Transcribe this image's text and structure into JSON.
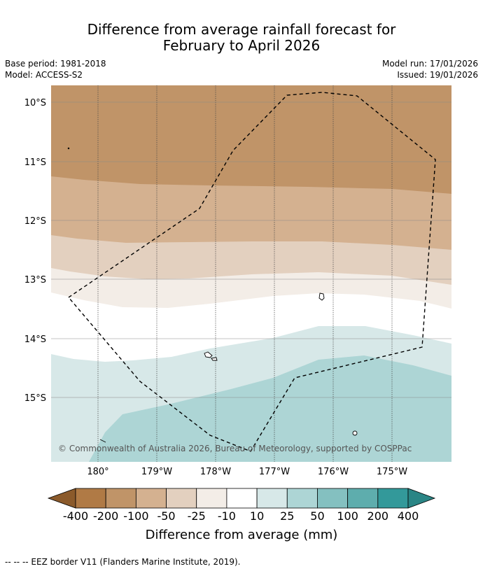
{
  "title_line1": "Difference from average rainfall forecast for",
  "title_line2": "February to April 2026",
  "base_period": "Base period: 1981-2018",
  "model": "Model: ACCESS-S2",
  "model_run": "Model run: 17/01/2026",
  "issued": "Issued: 19/01/2026",
  "lat_labels": [
    "10°S",
    "11°S",
    "12°S",
    "13°S",
    "14°S",
    "15°S"
  ],
  "lon_labels": [
    "180°",
    "179°W",
    "178°W",
    "177°W",
    "176°W",
    "175°W"
  ],
  "copyright": "© Commonwealth of Australia 2026, Bureau of Meteorology, supported by COSPPac",
  "colorbar": {
    "ticks": [
      "-400",
      "-200",
      "-100",
      "-50",
      "-25",
      "-10",
      "10",
      "25",
      "50",
      "100",
      "200",
      "400"
    ],
    "colors": [
      "#8b5a2b",
      "#b07a45",
      "#c09468",
      "#d4b190",
      "#e3d0bf",
      "#f3ede7",
      "#ffffff",
      "#d7e8e8",
      "#add5d5",
      "#84c0c0",
      "#5eadad",
      "#33999a",
      "#2a8585"
    ],
    "label": "Difference from average (mm)"
  },
  "footnote": "-- -- -- EEZ border V11 (Flanders Marine Institute, 2019)."
}
